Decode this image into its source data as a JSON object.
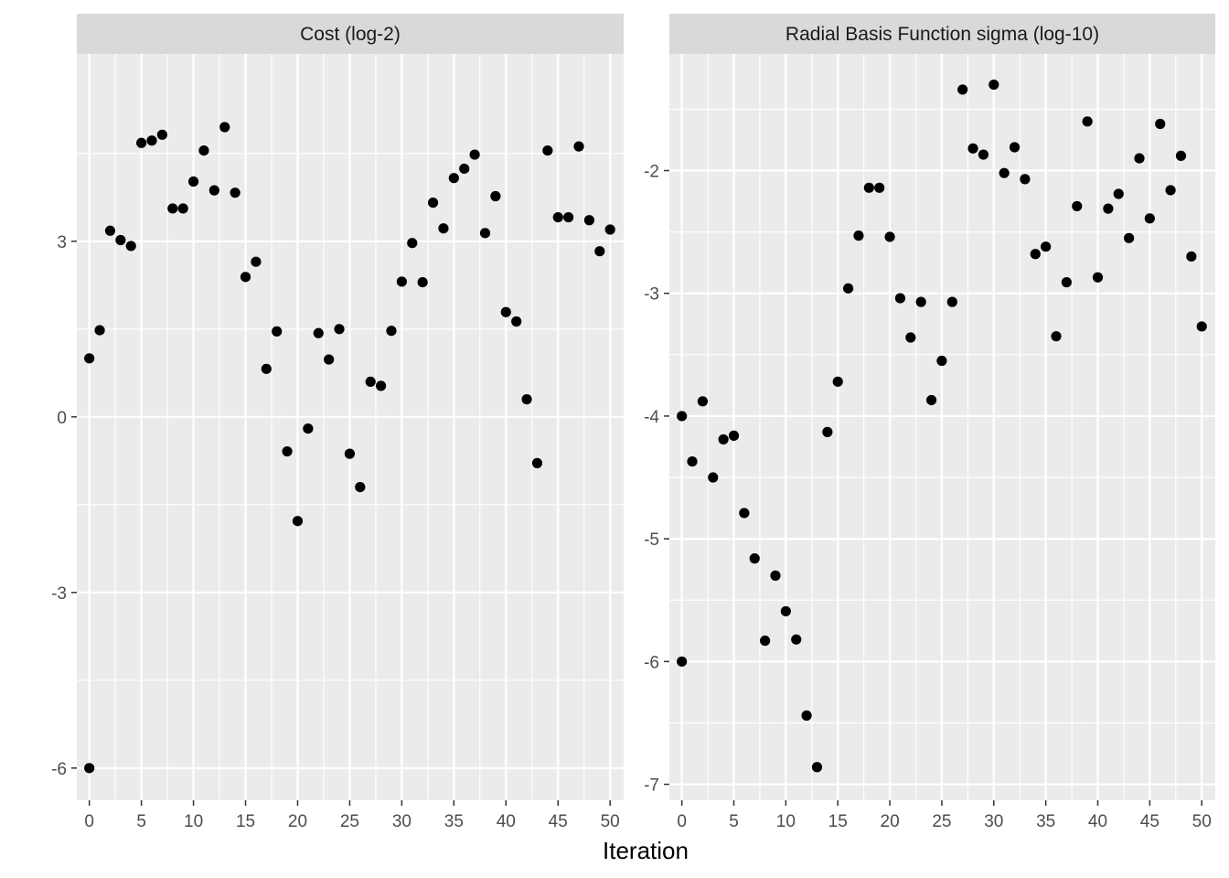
{
  "chart_data": {
    "type": "scatter",
    "xlabel": "Iteration",
    "facets": [
      {
        "title": "Cost (log-2)",
        "x_ticks": [
          0,
          5,
          10,
          15,
          20,
          25,
          30,
          35,
          40,
          45,
          50
        ],
        "y_ticks": [
          -6,
          -3,
          0,
          3
        ],
        "xlim": [
          -1.2,
          51.3
        ],
        "ylim": [
          -6.55,
          6.2
        ],
        "x": [
          0,
          0,
          1,
          2,
          3,
          4,
          5,
          6,
          7,
          8,
          9,
          10,
          11,
          12,
          13,
          14,
          15,
          16,
          17,
          18,
          19,
          20,
          21,
          22,
          23,
          24,
          25,
          26,
          27,
          28,
          29,
          30,
          31,
          32,
          33,
          34,
          35,
          36,
          37,
          38,
          39,
          40,
          41,
          42,
          43,
          44,
          45,
          46,
          47,
          48,
          49,
          50
        ],
        "y": [
          1.0,
          -6.0,
          1.48,
          3.18,
          3.02,
          2.92,
          4.68,
          4.72,
          4.82,
          3.56,
          3.56,
          4.02,
          4.55,
          3.87,
          4.95,
          3.83,
          2.39,
          2.65,
          0.82,
          1.46,
          -0.59,
          -1.78,
          -0.2,
          1.43,
          0.98,
          1.5,
          -0.63,
          -1.2,
          0.6,
          0.53,
          1.47,
          2.31,
          2.97,
          2.3,
          3.66,
          3.22,
          4.08,
          4.24,
          4.48,
          3.14,
          3.77,
          1.79,
          1.63,
          0.3,
          -0.79,
          4.55,
          3.41,
          3.41,
          4.62,
          3.36,
          2.83,
          3.2
        ]
      },
      {
        "title": "Radial Basis Function sigma (log-10)",
        "x_ticks": [
          0,
          5,
          10,
          15,
          20,
          25,
          30,
          35,
          40,
          45,
          50
        ],
        "y_ticks": [
          -7,
          -6,
          -5,
          -4,
          -3,
          -2
        ],
        "xlim": [
          -1.2,
          51.3
        ],
        "ylim": [
          -7.13,
          -1.05
        ],
        "x": [
          0,
          0,
          1,
          2,
          3,
          4,
          5,
          6,
          7,
          8,
          9,
          10,
          11,
          12,
          13,
          14,
          15,
          16,
          17,
          18,
          19,
          20,
          21,
          22,
          23,
          24,
          25,
          26,
          27,
          28,
          29,
          30,
          31,
          32,
          33,
          34,
          35,
          36,
          37,
          38,
          39,
          40,
          41,
          42,
          43,
          44,
          45,
          46,
          47,
          48,
          49,
          50
        ],
        "y": [
          -4.0,
          -6.0,
          -4.37,
          -3.88,
          -4.5,
          -4.19,
          -4.16,
          -4.79,
          -5.16,
          -5.83,
          -5.3,
          -5.59,
          -5.82,
          -6.44,
          -6.86,
          -4.13,
          -3.72,
          -2.96,
          -2.53,
          -2.14,
          -2.14,
          -2.54,
          -3.04,
          -3.36,
          -3.07,
          -3.87,
          -3.55,
          -3.07,
          -1.34,
          -1.82,
          -1.87,
          -1.3,
          -2.02,
          -1.81,
          -2.07,
          -2.68,
          -2.62,
          -3.35,
          -2.91,
          -2.29,
          -1.6,
          -2.87,
          -2.31,
          -2.19,
          -2.55,
          -1.9,
          -2.39,
          -1.62,
          -2.16,
          -1.88,
          -2.7,
          -3.27
        ]
      }
    ],
    "colors": {
      "panel_background": "#ebebeb",
      "strip_background": "#d9d9d9",
      "grid_major": "#ffffff",
      "point": "#000000"
    },
    "grid": true,
    "legend": "none"
  }
}
